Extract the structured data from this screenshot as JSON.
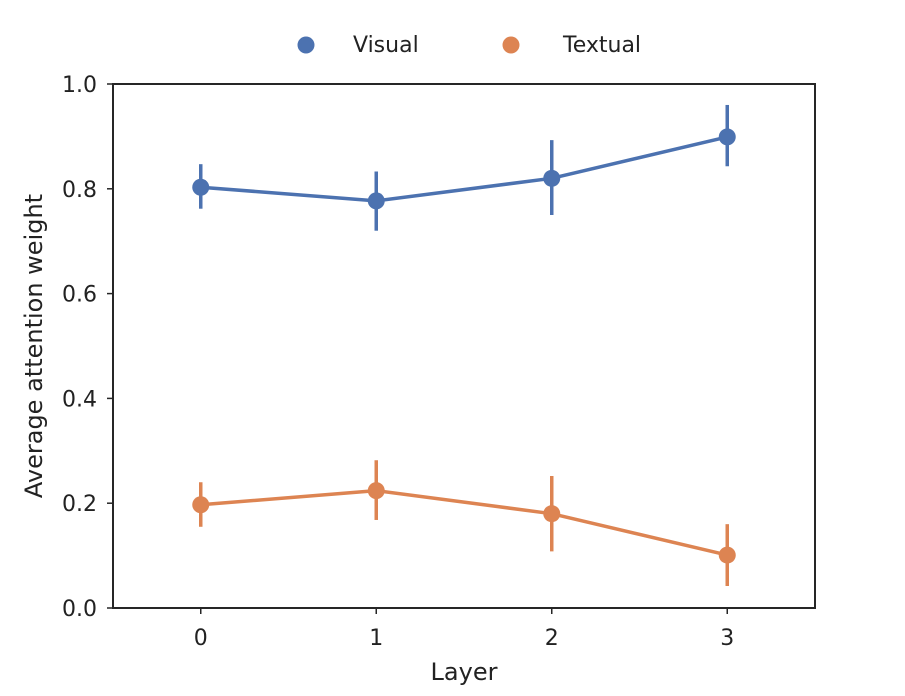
{
  "chart_data": {
    "type": "line",
    "title": "",
    "xlabel": "Layer",
    "ylabel": "Average attention weight",
    "x": [
      0,
      1,
      2,
      3
    ],
    "x_tick_labels": [
      "0",
      "1",
      "2",
      "3"
    ],
    "xlim": [
      -0.5,
      3.5
    ],
    "ylim": [
      0.0,
      1.0
    ],
    "y_ticks": [
      0.0,
      0.2,
      0.4,
      0.6,
      0.8,
      1.0
    ],
    "y_tick_labels": [
      "0.0",
      "0.2",
      "0.4",
      "0.6",
      "0.8",
      "1.0"
    ],
    "grid": false,
    "legend_position": "top-center",
    "series": [
      {
        "name": "Visual",
        "color": "#4c72b0",
        "values": [
          0.803,
          0.777,
          0.82,
          0.899
        ],
        "error_low": [
          0.762,
          0.72,
          0.75,
          0.843
        ],
        "error_high": [
          0.847,
          0.833,
          0.893,
          0.96
        ]
      },
      {
        "name": "Textual",
        "color": "#dd8452",
        "values": [
          0.197,
          0.224,
          0.18,
          0.101
        ],
        "error_low": [
          0.155,
          0.168,
          0.108,
          0.042
        ],
        "error_high": [
          0.24,
          0.282,
          0.252,
          0.16
        ]
      }
    ]
  }
}
